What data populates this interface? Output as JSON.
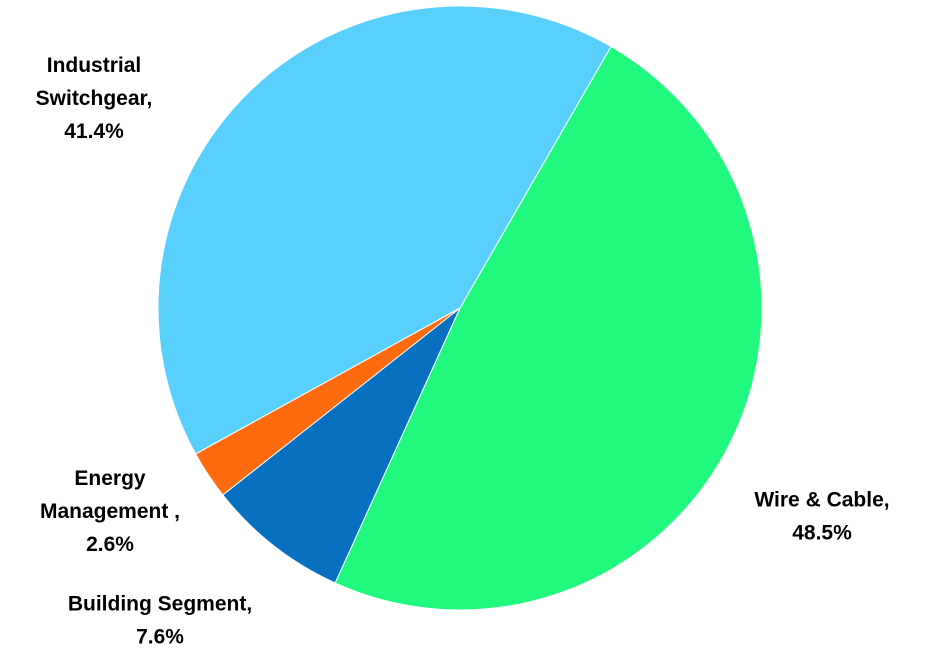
{
  "chart_data": {
    "type": "pie",
    "title": "",
    "categories": [
      "Wire & Cable",
      "Building Segment",
      "Energy Management",
      "Industrial Switchgear"
    ],
    "values": [
      48.5,
      7.6,
      2.6,
      41.4
    ],
    "label_lines": [
      [
        "Wire & Cable,",
        "48.5%"
      ],
      [
        "Building Segment,",
        "7.6%"
      ],
      [
        "Energy",
        "Management ,",
        "2.6%"
      ],
      [
        "Industrial",
        "Switchgear,",
        "41.4%"
      ]
    ],
    "colors": [
      "#21f97e",
      "#0870c0",
      "#fe6a0e",
      "#58d0fb"
    ],
    "legend": "none",
    "start_angle_deg": 30,
    "direction": "clockwise"
  }
}
